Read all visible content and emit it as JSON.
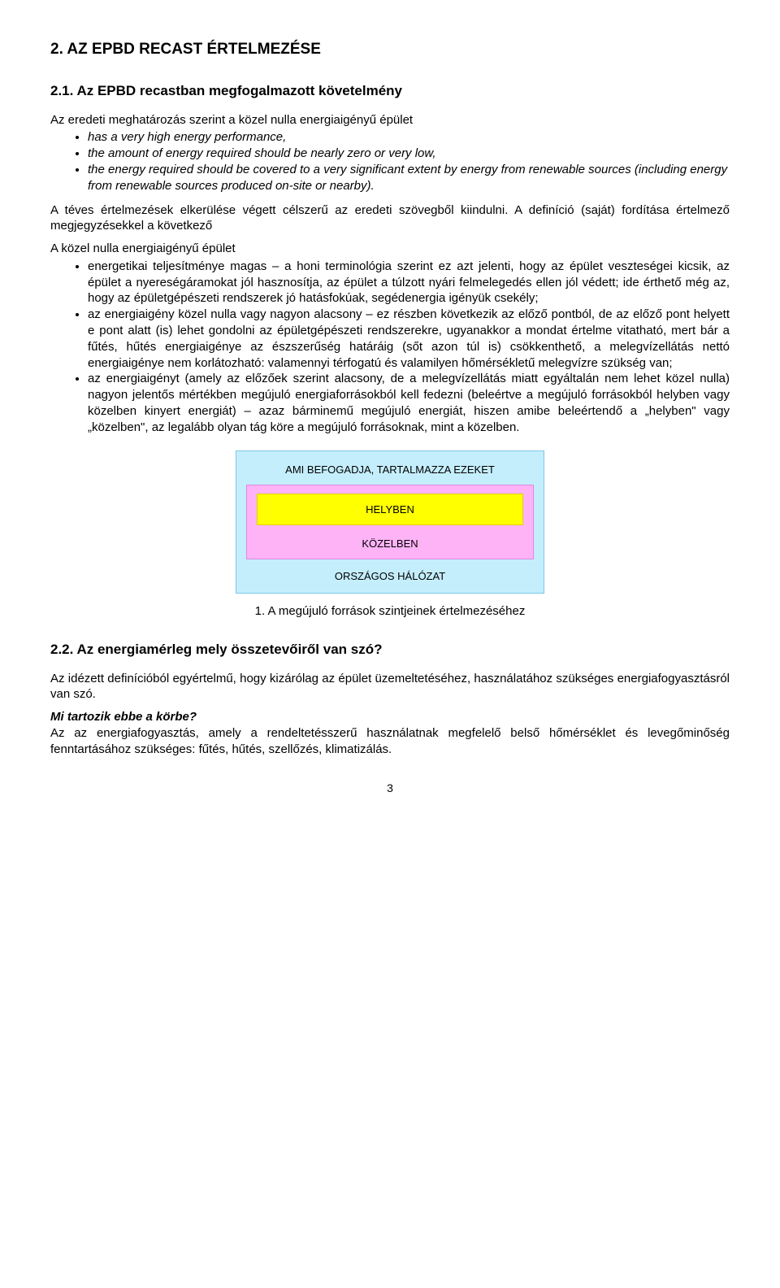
{
  "h1": "2. AZ EPBD RECAST ÉRTELMEZÉSE",
  "h2": "2.1. Az EPBD recastban megfogalmazott követelmény",
  "intro": "Az eredeti meghatározás szerint a közel nulla energiaigényű épület",
  "quote_items": [
    "has a very high energy performance,",
    "the amount of energy required should be nearly zero or very low,",
    "the energy required should be covered to a very significant extent by energy from renewable sources (including energy from renewable sources produced on-site or nearby)."
  ],
  "para1": "A téves értelmezések elkerülése végett célszerű az eredeti szövegből kiindulni. A definíció (saját) fordítása értelmező megjegyzésekkel a következő",
  "list_intro": "A közel nulla energiaigényű épület",
  "body_items": [
    "energetikai teljesítménye magas – a honi terminológia szerint ez azt jelenti, hogy az épület veszteségei kicsik, az épület a nyereségáramokat jól hasznosítja, az épület a túlzott nyári felmelegedés ellen jól védett; ide érthető még az, hogy az épületgépészeti rendszerek jó hatásfokúak, segédenergia igényük csekély;",
    "az energiaigény közel nulla vagy nagyon alacsony – ez részben következik az előző pontból, de az előző pont helyett e pont alatt (is) lehet gondolni az épületgépészeti rendszerekre, ugyanakkor a mondat értelme vitatható, mert bár a fűtés, hűtés energiaigénye az észszerűség határáig (sőt azon túl is) csökkenthető, a melegvízellátás nettó energiaigénye nem korlátozható: valamennyi térfogatú és valamilyen hőmérsékletű melegvízre szükség van;",
    "az energiaigényt (amely az előzőek szerint alacsony, de a melegvízellátás miatt egyáltalán nem lehet közel nulla) nagyon jelentős mértékben megújuló energiaforrásokból kell fedezni (beleértve a megújuló forrásokból helyben vagy közelben kinyert energiát) – azaz bárminemű megújuló energiát, hiszen amibe beleértendő a „helyben\" vagy „közelben\", az legalább olyan tág köre a megújuló forrásoknak, mint a közelben."
  ],
  "diagram": {
    "outer_bg": "#c5eefd",
    "outer_border": "#7cc9e8",
    "mid_bg": "#ffb3f7",
    "mid_border": "#d98adf",
    "inner_bg": "#ffff00",
    "inner_border": "#e0d000",
    "outer_label": "AMI BEFOGADJA, TARTALMAZZA EZEKET",
    "inner_label": "HELYBEN",
    "mid_label": "KÖZELBEN",
    "bottom_label": "ORSZÁGOS HÁLÓZAT"
  },
  "caption": "1.  A megújuló források szintjeinek értelmezéséhez",
  "h3": "2.2. Az energiamérleg mely összetevőiről van szó?",
  "para2": "Az idézett definícióból egyértelmű, hogy kizárólag az épület üzemeltetéséhez, használatához szükséges energiafogyasztásról van szó.",
  "q_label": "Mi tartozik ebbe a körbe?",
  "para3": "Az az energiafogyasztás, amely a rendeltetésszerű használatnak megfelelő belső hőmérséklet és levegőminőség fenntartásához szükséges: fűtés, hűtés, szellőzés, klimatizálás.",
  "page_num": "3"
}
